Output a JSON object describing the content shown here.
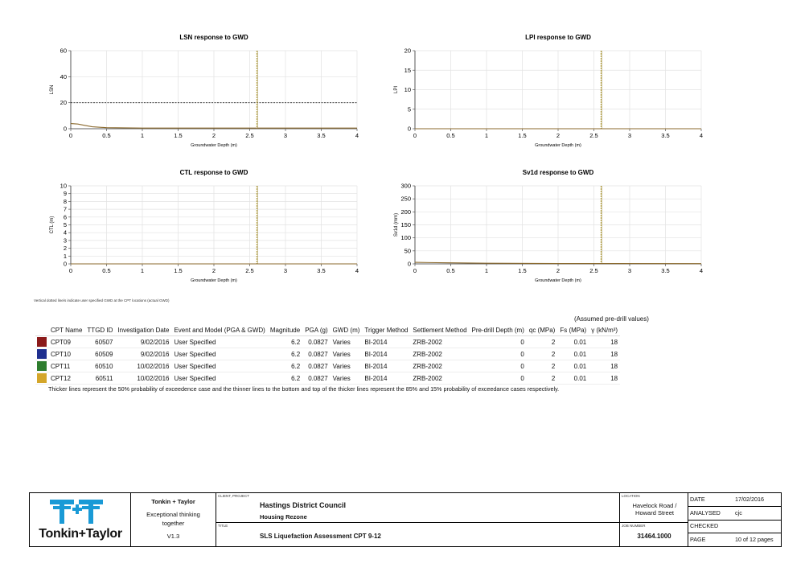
{
  "charts": [
    {
      "title": "LSN response to GWD",
      "xlabel": "Groundwater Depth (m)",
      "ylabel": "LSN",
      "yticks": [
        "60",
        "40",
        "20",
        "0"
      ],
      "xticks": [
        "0",
        "0.5",
        "1",
        "1.5",
        "2",
        "2.5",
        "3",
        "3.5",
        "4"
      ]
    },
    {
      "title": "LPI response to GWD",
      "xlabel": "Groundwater Depth (m)",
      "ylabel": "LPI",
      "yticks": [
        "20",
        "15",
        "10",
        "5",
        "0"
      ],
      "xticks": [
        "0",
        "0.5",
        "1",
        "1.5",
        "2",
        "2.5",
        "3",
        "3.5",
        "4"
      ]
    },
    {
      "title": "CTL response to GWD",
      "xlabel": "Groundwater Depth (m)",
      "ylabel": "CTL (m)",
      "yticks": [
        "10",
        "9",
        "8",
        "7",
        "6",
        "5",
        "4",
        "3",
        "2",
        "1",
        "0"
      ],
      "xticks": [
        "0",
        "0.5",
        "1",
        "1.5",
        "2",
        "2.5",
        "3",
        "3.5",
        "4"
      ]
    },
    {
      "title": "Sv1d response to GWD",
      "xlabel": "Groundwater Depth (m)",
      "ylabel": "Sv1d (mm)",
      "yticks": [
        "300",
        "250",
        "200",
        "150",
        "100",
        "50",
        "0"
      ],
      "xticks": [
        "0",
        "0.5",
        "1",
        "1.5",
        "2",
        "2.5",
        "3",
        "3.5",
        "4"
      ]
    }
  ],
  "chart_data": [
    {
      "type": "line",
      "title": "LSN response to GWD",
      "xlabel": "Groundwater Depth (m)",
      "ylabel": "LSN",
      "xlim": [
        0,
        4
      ],
      "ylim": [
        0,
        60
      ],
      "threshold_y": 20,
      "gwd_line_x": 2.6,
      "series": [
        {
          "name": "CPT09",
          "x": [
            0,
            0.1,
            0.2,
            0.3,
            0.5,
            1,
            4
          ],
          "y": [
            4,
            3.6,
            2.5,
            1.5,
            0.8,
            0.5,
            0.5
          ]
        }
      ]
    },
    {
      "type": "line",
      "title": "LPI response to GWD",
      "xlabel": "Groundwater Depth (m)",
      "ylabel": "LPI",
      "xlim": [
        0,
        4
      ],
      "ylim": [
        0,
        20
      ],
      "gwd_line_x": 2.6,
      "series": [
        {
          "name": "CPT09",
          "x": [
            0,
            4
          ],
          "y": [
            0,
            0
          ]
        }
      ]
    },
    {
      "type": "line",
      "title": "CTL response to GWD",
      "xlabel": "Groundwater Depth (m)",
      "ylabel": "CTL (m)",
      "xlim": [
        0,
        4
      ],
      "ylim": [
        0,
        10
      ],
      "gwd_line_x": 2.6,
      "series": [
        {
          "name": "CPT09",
          "x": [
            0,
            4
          ],
          "y": [
            0,
            0
          ]
        }
      ]
    },
    {
      "type": "line",
      "title": "Sv1d response to GWD",
      "xlabel": "Groundwater Depth (m)",
      "ylabel": "Sv1d (mm)",
      "xlim": [
        0,
        4
      ],
      "ylim": [
        0,
        300
      ],
      "gwd_line_x": 2.6,
      "series": [
        {
          "name": "CPT09",
          "x": [
            0,
            0.2,
            0.5,
            1,
            2,
            4
          ],
          "y": [
            6,
            5,
            4,
            2.5,
            1.5,
            1
          ]
        }
      ]
    }
  ],
  "note": "Vertical dotted line/s indicate user specified GWD at the CPT locations (actual GWD)",
  "assumed": "(Assumed pre-drill values)",
  "table": {
    "headers": [
      "CPT Name",
      "TTGD ID",
      "Investigation Date",
      "Event and Model (PGA & GWD)",
      "Magnitude",
      "PGA (g)",
      "GWD (m)",
      "Trigger Method",
      "Settlement Method",
      "Pre-drill Depth (m)",
      "qc (MPa)",
      "Fs (MPa)",
      "γ (kN/m³)"
    ],
    "rows": [
      {
        "color": "#8b1a1a",
        "cells": [
          "CPT09",
          "60507",
          "9/02/2016",
          "User Specified",
          "6.2",
          "0.0827",
          "Varies",
          "BI-2014",
          "ZRB-2002",
          "0",
          "2",
          "0.01",
          "18"
        ]
      },
      {
        "color": "#1f2f8f",
        "cells": [
          "CPT10",
          "60509",
          "9/02/2016",
          "User Specified",
          "6.2",
          "0.0827",
          "Varies",
          "BI-2014",
          "ZRB-2002",
          "0",
          "2",
          "0.01",
          "18"
        ]
      },
      {
        "color": "#2e7d2e",
        "cells": [
          "CPT11",
          "60510",
          "10/02/2016",
          "User Specified",
          "6.2",
          "0.0827",
          "Varies",
          "BI-2014",
          "ZRB-2002",
          "0",
          "2",
          "0.01",
          "18"
        ]
      },
      {
        "color": "#d4a62a",
        "cells": [
          "CPT12",
          "60511",
          "10/02/2016",
          "User Specified",
          "6.2",
          "0.0827",
          "Varies",
          "BI-2014",
          "ZRB-2002",
          "0",
          "2",
          "0.01",
          "18"
        ]
      }
    ],
    "footnote": "Thicker lines represent the 50% probability of exceedence case and the thinner lines to the bottom and top of the thicker lines represent the 85% and 15% probability of exceedance cases respectively."
  },
  "titleblock": {
    "logo_text": "Tonkin+Taylor",
    "company": "Tonkin + Taylor",
    "tagline": "Exceptional thinking together",
    "version": "V1.3",
    "client_label": "CLIENT, PROJECT",
    "client": "Hastings District Council",
    "project": "Housing Rezone",
    "title_label": "TITLE",
    "title": "SLS Liquefaction Assessment CPT 9-12",
    "location_label": "LOCATION",
    "location": "Havelock Road / Howard Street",
    "job_label": "JOB NUMBER",
    "job": "31464.1000",
    "date_label": "DATE",
    "date": "17/02/2016",
    "analysed_label": "ANALYSED",
    "analysed": "cjc",
    "checked_label": "CHECKED",
    "checked": "",
    "page_label": "PAGE",
    "page": "10 of 12 pages",
    "brand_color": "#1a9ad6"
  }
}
